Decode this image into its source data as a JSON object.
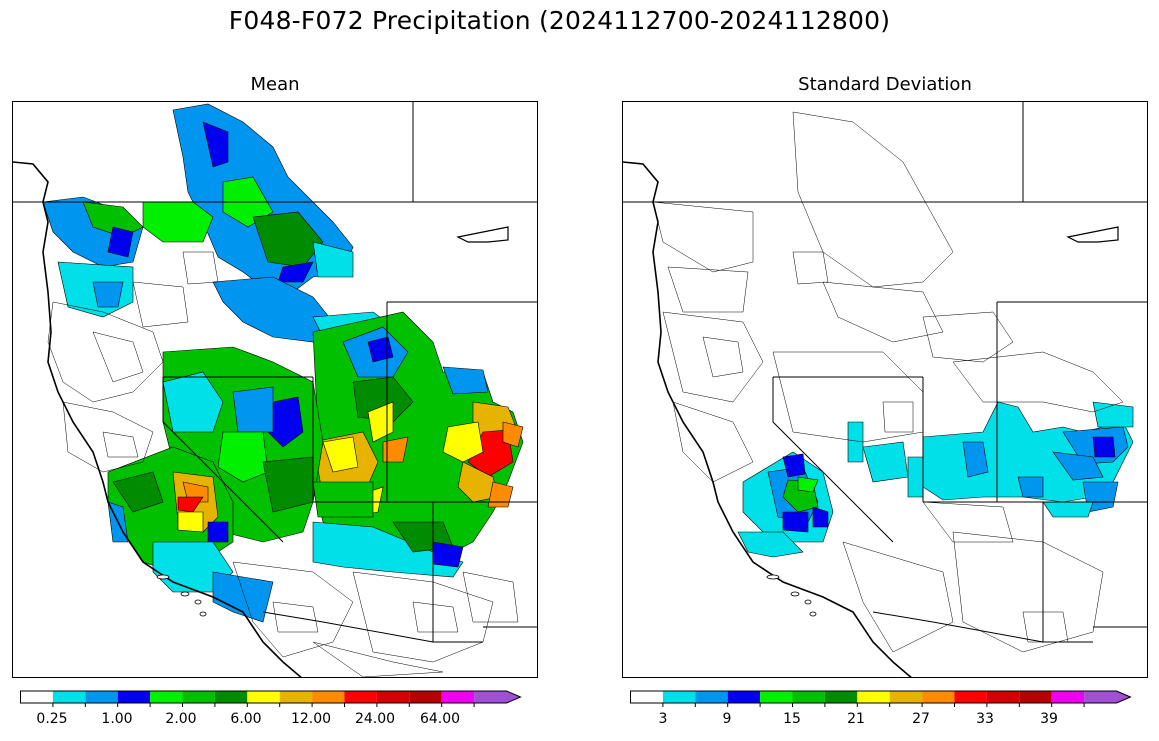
{
  "title": "F048-F072 Precipitation (2024112700-2024112800)",
  "colors": {
    "white": "#ffffff",
    "cyan": "#00e0e8",
    "light_blue": "#0096f0",
    "blue": "#0000f0",
    "bright_green": "#00f000",
    "green": "#00c000",
    "dark_green": "#008c00",
    "yellow": "#ffff00",
    "gold": "#e6b400",
    "orange": "#ff8c00",
    "red": "#ff0000",
    "dark_red_1": "#d20000",
    "dark_red_2": "#b40000",
    "magenta": "#f000f0",
    "purple": "#a050d2"
  },
  "panels": [
    {
      "title": "Mean",
      "colorbar": {
        "colors": [
          "#ffffff",
          "#00e0e8",
          "#0096f0",
          "#0000f0",
          "#00f000",
          "#00c000",
          "#008c00",
          "#ffff00",
          "#e6b400",
          "#ff8c00",
          "#ff0000",
          "#d20000",
          "#b40000",
          "#f000f0",
          "#a050d2"
        ],
        "extend": "max",
        "tick_labels": [
          "0.25",
          "1.00",
          "2.00",
          "6.00",
          "12.00",
          "24.00",
          "64.00"
        ]
      }
    },
    {
      "title": "Standard Deviation",
      "colorbar": {
        "colors": [
          "#ffffff",
          "#00e0e8",
          "#0096f0",
          "#0000f0",
          "#00f000",
          "#00c000",
          "#008c00",
          "#ffff00",
          "#e6b400",
          "#ff8c00",
          "#ff0000",
          "#d20000",
          "#b40000",
          "#f000f0",
          "#a050d2"
        ],
        "extend": "max",
        "tick_labels": [
          "3",
          "9",
          "15",
          "21",
          "27",
          "33",
          "39"
        ]
      }
    }
  ]
}
